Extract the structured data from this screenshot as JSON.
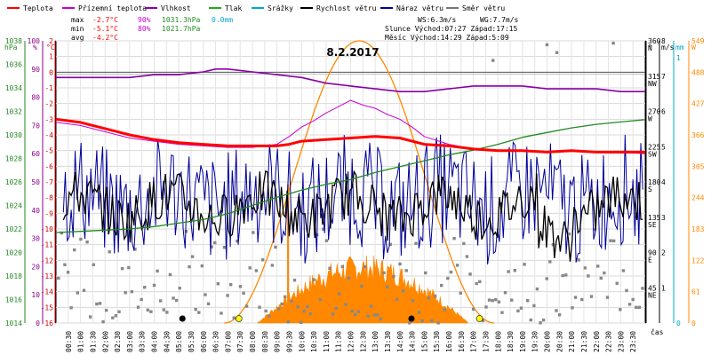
{
  "chart_data": {
    "type": "line",
    "title": "8.2.2017",
    "x_unit": "čas",
    "x_ticks": [
      "00:30",
      "01:00",
      "01:30",
      "02:00",
      "02:30",
      "03:00",
      "03:30",
      "04:00",
      "04:30",
      "05:00",
      "05:30",
      "06:00",
      "06:30",
      "07:00",
      "07:30",
      "08:00",
      "08:30",
      "09:00",
      "09:30",
      "10:00",
      "10:30",
      "11:00",
      "11:30",
      "12:00",
      "12:30",
      "13:00",
      "13:30",
      "14:00",
      "14:30",
      "15:00",
      "15:30",
      "16:00",
      "16:30",
      "17:00",
      "17:30",
      "18:00",
      "18:30",
      "19:00",
      "19:30",
      "20:00",
      "20:30",
      "21:00",
      "21:30",
      "22:00",
      "22:30",
      "23:00",
      "23:30"
    ],
    "legend": [
      {
        "name": "Teplota",
        "color": "#ff0000"
      },
      {
        "name": "Přízemní teplota",
        "color": "#cc00cc"
      },
      {
        "name": "Vlhkost",
        "color": "#8800aa"
      },
      {
        "name": "Tlak",
        "color": "#22aa22"
      },
      {
        "name": "Srážky",
        "color": "#00aacc"
      },
      {
        "name": "Rychlost větru",
        "color": "#000000"
      },
      {
        "name": "Náraz větru",
        "color": "#000099"
      },
      {
        "name": "Směr větru",
        "color": "#777777"
      }
    ],
    "stats": {
      "max_label": "max",
      "max_temp": "-2.7°C",
      "max_hum": "90%",
      "max_press": "1031.3hPa",
      "max_rain": "0.0mm",
      "min_label": "min",
      "min_temp": "-5.1°C",
      "min_hum": "80%",
      "min_press": "1021.7hPa",
      "avg_label": "avg",
      "avg_temp": "-4.2°C"
    },
    "wind_info": {
      "ws": "WS:6.3m/s",
      "wg": "WG:7.7m/s"
    },
    "sun_info": {
      "sun": "Slunce Východ:07:27  Západ:17:15",
      "moon": "Měsíc  Východ:14:29  Západ:5:09"
    },
    "axes": {
      "hpa": {
        "label": "hPa",
        "ticks": [
          1014,
          1016,
          1018,
          1020,
          1022,
          1024,
          1026,
          1028,
          1030,
          1032,
          1034,
          1036,
          1038
        ],
        "color": "#228822"
      },
      "pct": {
        "label": "%",
        "ticks": [
          0,
          10,
          20,
          30,
          40,
          50,
          60,
          70,
          80,
          90,
          100
        ],
        "color": "#880088"
      },
      "temp": {
        "label": "°C",
        "ticks": [
          -16,
          -15,
          -14,
          -13,
          -12,
          -11,
          -10,
          -9,
          -8,
          -7,
          -6,
          -5,
          -4,
          -3,
          -2,
          -1,
          0,
          1,
          2
        ],
        "color": "#cc0000"
      },
      "deg": {
        "label": "°",
        "ticks": [
          0,
          45,
          90,
          135,
          180,
          225,
          270,
          315,
          360
        ],
        "dirs": [
          "",
          "NE",
          "E",
          "SE",
          "S",
          "SW",
          "W",
          "NW",
          "N"
        ]
      },
      "ms": {
        "label": "m/s",
        "ticks": [
          0,
          1,
          2,
          3,
          4,
          5,
          6,
          7,
          8
        ]
      },
      "mm": {
        "label": "mm",
        "ticks": [
          0,
          1
        ],
        "color": "#00aacc"
      },
      "w": {
        "label": "W",
        "ticks": [
          0,
          61,
          122,
          183,
          244,
          305,
          366,
          427,
          488,
          549
        ],
        "color": "#ff8800"
      }
    },
    "series": {
      "temperature": {
        "x": [
          0,
          0.5,
          1,
          2,
          3,
          4,
          5,
          6,
          7,
          8,
          9,
          9.5,
          10,
          11,
          12,
          13,
          14,
          15,
          16,
          17,
          18,
          19,
          20,
          21,
          22,
          23,
          23.5,
          24
        ],
        "y": [
          -3,
          -3.1,
          -3.2,
          -3.6,
          -4.0,
          -4.3,
          -4.5,
          -4.6,
          -4.7,
          -4.7,
          -4.7,
          -4.6,
          -4.4,
          -4.3,
          -4.2,
          -4.1,
          -4.2,
          -4.6,
          -4.7,
          -4.9,
          -5.0,
          -5.0,
          -5.1,
          -5.0,
          -5.1,
          -5.1,
          -5.1,
          -5.1
        ]
      },
      "ground_temperature": {
        "x": [
          0,
          1,
          2,
          3,
          4,
          5,
          6,
          7,
          8,
          9,
          9.5,
          10,
          10.5,
          11,
          11.5,
          12,
          12.5,
          13,
          13.5,
          14,
          14.5,
          15,
          16,
          17,
          18,
          19,
          20,
          21,
          22,
          23,
          24
        ],
        "y": [
          -3.2,
          -3.4,
          -3.8,
          -4.2,
          -4.4,
          -4.6,
          -4.7,
          -4.8,
          -4.8,
          -4.6,
          -4.1,
          -3.5,
          -3.1,
          -2.6,
          -2.2,
          -1.8,
          -2.1,
          -2.3,
          -2.7,
          -3.0,
          -3.5,
          -4.1,
          -4.6,
          -4.9,
          -5.0,
          -5.0,
          -5.1,
          -5.0,
          -5.1,
          -5.1,
          -5.2
        ]
      },
      "humidity": {
        "x": [
          0,
          1,
          2,
          3,
          4,
          5,
          6,
          6.5,
          7,
          8,
          9,
          10,
          11,
          12,
          13,
          14,
          15,
          16,
          17,
          18,
          19,
          20,
          21,
          22,
          23,
          24
        ],
        "y": [
          87,
          87,
          87,
          87,
          88,
          88,
          89,
          90,
          90,
          89,
          88,
          87,
          85,
          84,
          83,
          82,
          82,
          83,
          84,
          84,
          84,
          83,
          83,
          83,
          82,
          82
        ]
      },
      "pressure": {
        "x": [
          0,
          1,
          2,
          3,
          4,
          5,
          6,
          7,
          8,
          9,
          10,
          11,
          12,
          13,
          14,
          15,
          16,
          17,
          18,
          19,
          20,
          21,
          22,
          23,
          24
        ],
        "y": [
          1021.7,
          1021.8,
          1021.9,
          1022.0,
          1022.2,
          1022.5,
          1022.8,
          1023.3,
          1024.0,
          1024.7,
          1025.3,
          1025.8,
          1026.2,
          1026.8,
          1027.3,
          1027.8,
          1028.3,
          1028.7,
          1029.2,
          1029.8,
          1030.2,
          1030.6,
          1030.9,
          1031.1,
          1031.3
        ]
      },
      "wind_speed_avg_ms": 3.3,
      "wind_gust_avg_ms": 3.5,
      "wind_direction_dominant_deg": 45,
      "solar_peak_W": 107,
      "theoretical_solar_peak_W": 549
    }
  }
}
